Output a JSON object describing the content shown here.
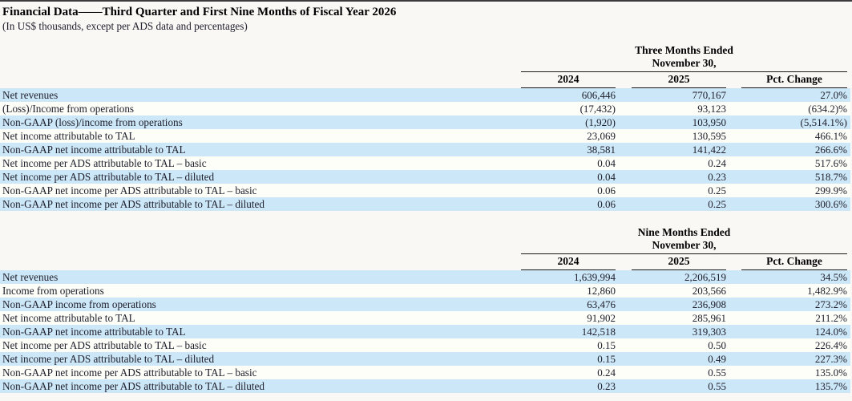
{
  "page": {
    "title": "Financial Data——Third Quarter and First Nine Months of Fiscal Year 2026",
    "subtitle": "(In US$ thousands, except per ADS data and percentages)"
  },
  "colors": {
    "stripe_blue": "#cce7f7",
    "stripe_plain": "#fdfef7",
    "rule": "#1a1a1a",
    "text": "#20202e",
    "page_bg": "#f9f8f5"
  },
  "tables": [
    {
      "period_line1": "Three Months Ended",
      "period_line2": "November 30,",
      "columns": [
        "2024",
        "2025",
        "Pct. Change"
      ],
      "rows": [
        {
          "label": "Net revenues",
          "y2024": "606,446",
          "y2025": "770,167",
          "pct": "27.0%"
        },
        {
          "label": "(Loss)/Income from operations",
          "y2024": "(17,432)",
          "y2025": "93,123",
          "pct": "(634.2)%"
        },
        {
          "label": "Non-GAAP (loss)/income from operations",
          "y2024": "(1,920)",
          "y2025": "103,950",
          "pct": "(5,514.1%)"
        },
        {
          "label": "Net income attributable to TAL",
          "y2024": "23,069",
          "y2025": "130,595",
          "pct": "466.1%"
        },
        {
          "label": "Non-GAAP net income attributable to TAL",
          "y2024": "38,581",
          "y2025": "141,422",
          "pct": "266.6%"
        },
        {
          "label": "Net income per ADS attributable to TAL – basic",
          "y2024": "0.04",
          "y2025": "0.24",
          "pct": "517.6%"
        },
        {
          "label": "Net income per ADS attributable to TAL – diluted",
          "y2024": "0.04",
          "y2025": "0.23",
          "pct": "518.7%"
        },
        {
          "label": "Non-GAAP net income per ADS attributable to TAL – basic",
          "y2024": "0.06",
          "y2025": "0.25",
          "pct": "299.9%"
        },
        {
          "label": "Non-GAAP net income per ADS attributable to TAL – diluted",
          "y2024": "0.06",
          "y2025": "0.25",
          "pct": "300.6%"
        }
      ]
    },
    {
      "period_line1": "Nine Months Ended",
      "period_line2": "November 30,",
      "columns": [
        "2024",
        "2025",
        "Pct. Change"
      ],
      "rows": [
        {
          "label": "Net revenues",
          "y2024": "1,639,994",
          "y2025": "2,206,519",
          "pct": "34.5%"
        },
        {
          "label": "Income from operations",
          "y2024": "12,860",
          "y2025": "203,566",
          "pct": "1,482.9%"
        },
        {
          "label": "Non-GAAP income from operations",
          "y2024": "63,476",
          "y2025": "236,908",
          "pct": "273.2%"
        },
        {
          "label": "Net income attributable to TAL",
          "y2024": "91,902",
          "y2025": "285,961",
          "pct": "211.2%"
        },
        {
          "label": "Non-GAAP net income attributable to TAL",
          "y2024": "142,518",
          "y2025": "319,303",
          "pct": "124.0%"
        },
        {
          "label": "Net income per ADS attributable to TAL – basic",
          "y2024": "0.15",
          "y2025": "0.50",
          "pct": "226.4%"
        },
        {
          "label": "Net income per ADS attributable to TAL – diluted",
          "y2024": "0.15",
          "y2025": "0.49",
          "pct": "227.3%"
        },
        {
          "label": "Non-GAAP net income per ADS attributable to TAL – basic",
          "y2024": "0.24",
          "y2025": "0.55",
          "pct": "135.0%"
        },
        {
          "label": "Non-GAAP net income per ADS attributable to TAL – diluted",
          "y2024": "0.23",
          "y2025": "0.55",
          "pct": "135.7%"
        }
      ]
    }
  ]
}
